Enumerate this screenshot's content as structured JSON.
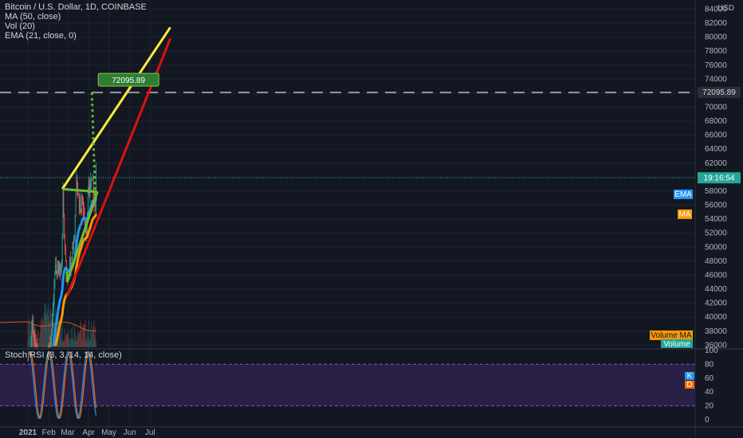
{
  "header": {
    "symbol_title": "Bitcoin / U.S. Dollar, 1D, COINBASE",
    "currency": "USD"
  },
  "indicators": {
    "ma": "MA (50, close)",
    "vol": "Vol (20)",
    "ema": "EMA (21, close, 0)",
    "stoch": "Stoch RSI (3, 3, 14, 14, close)"
  },
  "badges": {
    "target_label": "72095.89",
    "target_axis": "72095.89",
    "countdown": "19:16:54",
    "ema_tag": "EMA",
    "ma_tag": "MA",
    "volume_ma_tag": "Volume MA",
    "volume_tag": "Volume",
    "k_tag": "K",
    "d_tag": "D"
  },
  "colors": {
    "background": "#131722",
    "up": "#26a69a",
    "down": "#ef5350",
    "ema": "#2196f3",
    "ma": "#ff9800",
    "yellow_line": "#ffeb3b",
    "red_line": "#e0100f",
    "green_line": "#6ebf2f",
    "target_dots": "#5fbf30",
    "stoch_bg": "#2a1f45",
    "stoch_k": "#2196f3",
    "stoch_d": "#ff6d00"
  },
  "chart_data": {
    "type": "candlestick",
    "symbol": "Bitcoin / U.S. Dollar",
    "interval": "1D",
    "exchange": "COINBASE",
    "price_axis": {
      "ticks": [
        36000,
        38000,
        40000,
        42000,
        44000,
        46000,
        48000,
        50000,
        52000,
        54000,
        56000,
        58000,
        60000,
        62000,
        64000,
        66000,
        68000,
        70000,
        72000,
        74000,
        76000,
        78000,
        80000,
        82000,
        84000
      ],
      "range": [
        35700,
        85300
      ]
    },
    "time_axis": {
      "labels": [
        "2021",
        "Feb",
        "Mar",
        "Apr",
        "May",
        "Jun",
        "Jul"
      ],
      "start": "2021-01-01",
      "end": "2021-07-31"
    },
    "horizontal_line": 72095.89,
    "current_price_line": 59900,
    "countdown": "19:16:54",
    "trendlines": [
      {
        "name": "yellow",
        "from": [
          "2021-02-21",
          58300
        ],
        "to": [
          "2021-07-31",
          81400
        ]
      },
      {
        "name": "red",
        "from": [
          "2021-02-28",
          43000
        ],
        "to": [
          "2021-07-31",
          79800
        ]
      },
      {
        "name": "green_upper",
        "from": [
          "2021-02-21",
          58300
        ],
        "to": [
          "2021-04-14",
          57900
        ]
      },
      {
        "name": "green_lower",
        "from": [
          "2021-02-28",
          45000
        ],
        "to": [
          "2021-04-14",
          57900
        ]
      }
    ],
    "projection": {
      "from": [
        "2021-04-11",
        56600
      ],
      "to": [
        "2021-04-01",
        72095.89
      ],
      "label": "72095.89"
    },
    "stoch_rsi": {
      "levels": [
        80,
        20
      ],
      "ticks": [
        0,
        20,
        40,
        60,
        80,
        100
      ]
    }
  }
}
